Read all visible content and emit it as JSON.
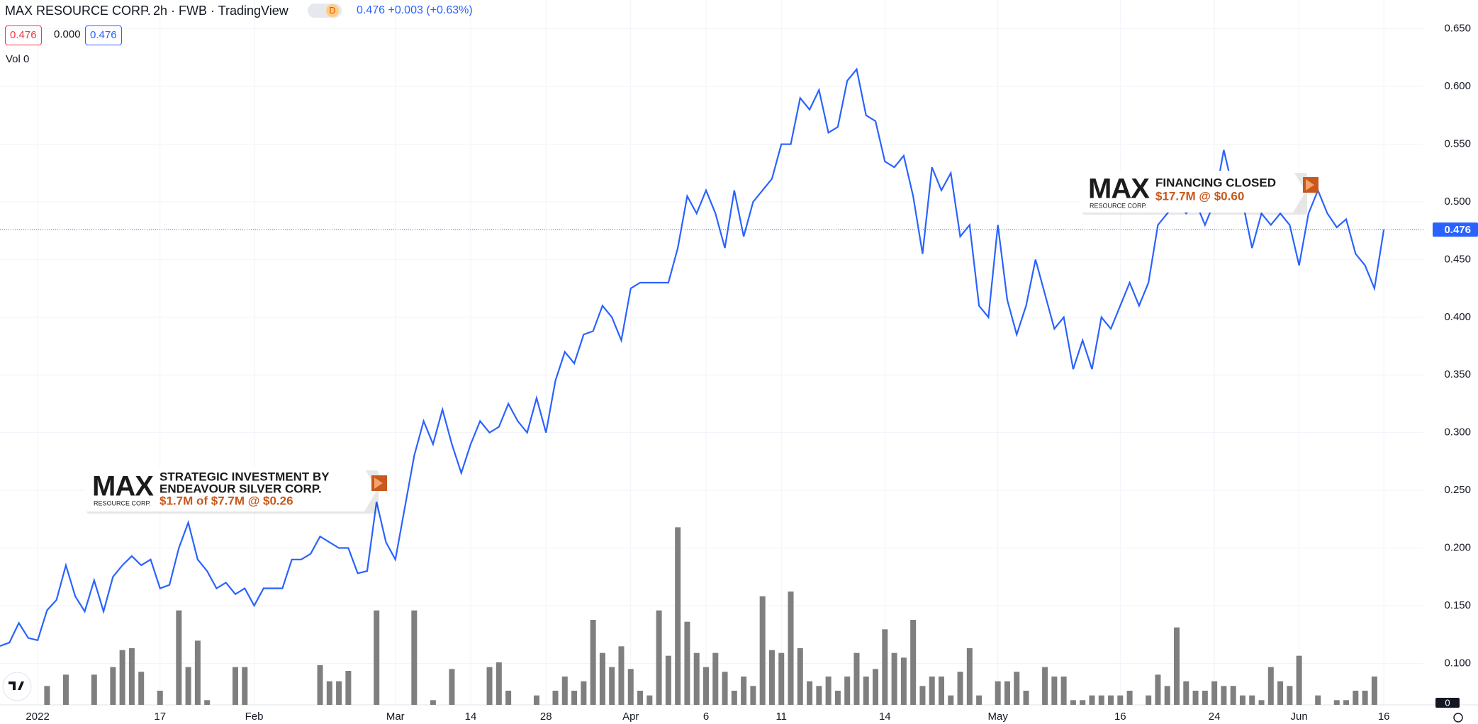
{
  "header": {
    "symbol": "MAX RESOURCE CORP.",
    "details": "· 2h · FWB · TradingView",
    "badge": "D",
    "quote": "0.476 +0.003 (+0.63%)",
    "ohlc": [
      "0.476",
      "0.000",
      "0.476"
    ],
    "volume_label": "Vol 0"
  },
  "chart_data": {
    "type": "line",
    "categories": [
      null,
      null,
      null,
      null,
      "2022",
      null,
      null,
      null,
      null,
      null,
      null,
      null,
      null,
      null,
      null,
      null,
      null,
      "17",
      null,
      null,
      null,
      null,
      null,
      null,
      null,
      null,
      null,
      "Feb",
      null,
      null,
      null,
      null,
      null,
      null,
      null,
      null,
      null,
      null,
      null,
      null,
      null,
      null,
      "Mar",
      null,
      null,
      null,
      null,
      null,
      null,
      null,
      "14",
      null,
      null,
      null,
      null,
      null,
      null,
      null,
      "28",
      null,
      null,
      null,
      null,
      null,
      null,
      null,
      null,
      "Apr",
      null,
      null,
      null,
      null,
      null,
      null,
      null,
      "6",
      null,
      null,
      null,
      null,
      null,
      null,
      null,
      "11",
      null,
      null,
      null,
      null,
      null,
      null,
      null,
      null,
      null,
      null,
      "14",
      null,
      null,
      null,
      null,
      null,
      null,
      null,
      null,
      null,
      null,
      null,
      "May",
      null,
      null,
      null,
      null,
      null,
      null,
      null,
      null,
      null,
      null,
      null,
      null,
      "16",
      null,
      null,
      null,
      null,
      null,
      null,
      null,
      null,
      null,
      "24",
      null,
      null,
      null,
      null,
      null,
      null,
      null,
      null,
      "Jun",
      null,
      null,
      null,
      null,
      null,
      null,
      null,
      null,
      "16"
    ],
    "series": [
      {
        "color": "#2962ff",
        "values": [
          0.115,
          0.118,
          0.135,
          0.122,
          0.12,
          0.146,
          0.155,
          0.185,
          0.158,
          0.145,
          0.172,
          0.145,
          0.175,
          0.185,
          0.193,
          0.185,
          0.19,
          0.165,
          0.168,
          0.2,
          0.222,
          0.19,
          0.18,
          0.165,
          0.17,
          0.16,
          0.165,
          0.15,
          0.165,
          0.165,
          0.165,
          0.19,
          0.19,
          0.195,
          0.21,
          0.205,
          0.2,
          0.2,
          0.178,
          0.18,
          0.24,
          0.205,
          0.19,
          0.235,
          0.28,
          0.31,
          0.29,
          0.32,
          0.29,
          0.265,
          0.29,
          0.31,
          0.3,
          0.305,
          0.325,
          0.31,
          0.3,
          0.33,
          0.3,
          0.345,
          0.37,
          0.36,
          0.385,
          0.388,
          0.41,
          0.4,
          0.38,
          0.425,
          0.43,
          0.43,
          0.43,
          0.43,
          0.46,
          0.505,
          0.49,
          0.51,
          0.49,
          0.46,
          0.51,
          0.47,
          0.5,
          0.51,
          0.52,
          0.55,
          0.55,
          0.59,
          0.58,
          0.597,
          0.56,
          0.565,
          0.605,
          0.615,
          0.575,
          0.57,
          0.535,
          0.53,
          0.54,
          0.505,
          0.455,
          0.53,
          0.51,
          0.525,
          0.47,
          0.48,
          0.41,
          0.4,
          0.48,
          0.415,
          0.385,
          0.41,
          0.45,
          0.42,
          0.39,
          0.4,
          0.355,
          0.38,
          0.355,
          0.4,
          0.39,
          0.41,
          0.43,
          0.41,
          0.43,
          0.48,
          0.49,
          0.5,
          0.49,
          0.5,
          0.48,
          0.5,
          0.545,
          0.51,
          0.5,
          0.46,
          0.49,
          0.48,
          0.49,
          0.48,
          0.445,
          0.49,
          0.51,
          0.49,
          0.478,
          0.485,
          0.455,
          0.445,
          0.425,
          0.476
        ]
      },
      {
        "type": "bar",
        "axis": "y2",
        "color": "#7f7f7f",
        "values": [
          0,
          0,
          0,
          0,
          0,
          20,
          0,
          32,
          0,
          0,
          32,
          0,
          40,
          58,
          60,
          35,
          0,
          15,
          0,
          100,
          40,
          68,
          5,
          0,
          0,
          40,
          40,
          0,
          0,
          0,
          0,
          0,
          0,
          0,
          42,
          25,
          25,
          36,
          0,
          0,
          100,
          0,
          0,
          0,
          100,
          0,
          5,
          0,
          38,
          0,
          0,
          0,
          40,
          45,
          15,
          0,
          0,
          10,
          0,
          15,
          30,
          15,
          25,
          90,
          55,
          40,
          62,
          38,
          15,
          10,
          100,
          52,
          188,
          88,
          55,
          40,
          55,
          35,
          15,
          30,
          20,
          115,
          58,
          55,
          120,
          60,
          25,
          20,
          30,
          15,
          30,
          55,
          30,
          38,
          80,
          55,
          50,
          90,
          20,
          30,
          30,
          10,
          35,
          60,
          10,
          0,
          25,
          25,
          35,
          15,
          0,
          40,
          30,
          30,
          5,
          5,
          10,
          10,
          10,
          10,
          15,
          0,
          10,
          32,
          20,
          82,
          25,
          15,
          15,
          25,
          20,
          20,
          10,
          10,
          5,
          40,
          25,
          20,
          52,
          0,
          10,
          0,
          5,
          5,
          15,
          15,
          30,
          0
        ]
      }
    ],
    "ylim": [
      0.064,
      0.675
    ],
    "yticks": [
      {
        "value": 0.1,
        "label": "0.100"
      },
      {
        "value": 0.15,
        "label": "0.150"
      },
      {
        "value": 0.2,
        "label": "0.200"
      },
      {
        "value": 0.25,
        "label": "0.250"
      },
      {
        "value": 0.3,
        "label": "0.300"
      },
      {
        "value": 0.35,
        "label": "0.350"
      },
      {
        "value": 0.4,
        "label": "0.400"
      },
      {
        "value": 0.45,
        "label": "0.450"
      },
      {
        "value": 0.5,
        "label": "0.500"
      },
      {
        "value": 0.55,
        "label": "0.550"
      },
      {
        "value": 0.6,
        "label": "0.600"
      },
      {
        "value": 0.65,
        "label": "0.650"
      }
    ],
    "y2lim": [
      0,
      300
    ],
    "y2ticks": [
      0
    ],
    "last_price": 0.476,
    "grid": true,
    "annotations": [
      {
        "logo": "MAX",
        "logo_sub": "RESOURCE CORP.",
        "lines": [
          "STRATEGIC INVESTMENT BY",
          "ENDEAVOUR SILVER CORP."
        ],
        "detail": "$1.7M of $7.7M @ $0.26"
      },
      {
        "logo": "MAX",
        "logo_sub": "RESOURCE CORP.",
        "lines": [
          "FINANCING CLOSED"
        ],
        "detail": "$17.7M @ $0.60"
      }
    ]
  }
}
